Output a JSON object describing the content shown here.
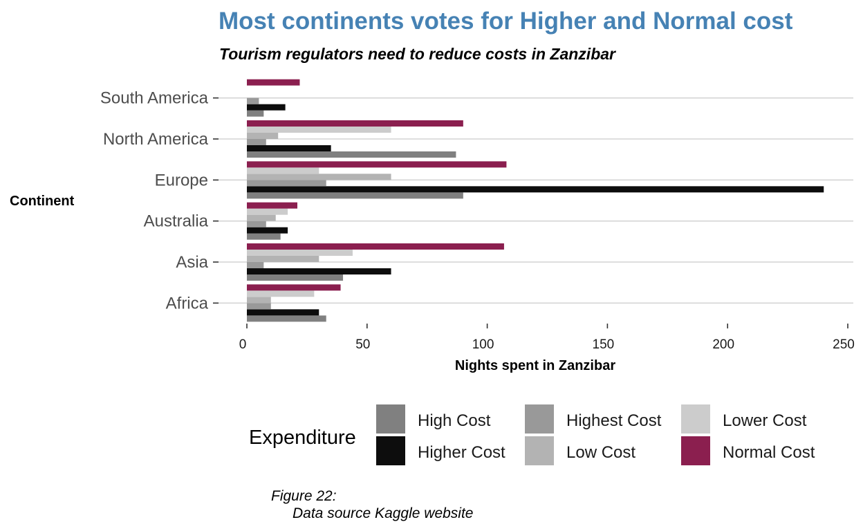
{
  "chart_data": {
    "type": "bar",
    "orientation": "horizontal",
    "title": "Most continents votes for Higher and Normal cost",
    "subtitle": "Tourism regulators need to  reduce costs in Zanzibar",
    "xlabel": "Nights spent in Zanzibar",
    "ylabel": "Continent",
    "xlim": [
      0,
      250
    ],
    "xticks": [
      "0",
      "50",
      "100",
      "150",
      "200",
      "250"
    ],
    "grid": "horizontal",
    "categories": [
      "Africa",
      "Asia",
      "Australia",
      "Europe",
      "North America",
      "South America"
    ],
    "series": [
      {
        "name": "High Cost",
        "color": "#808080",
        "values": [
          33,
          40,
          14,
          90,
          87,
          7
        ]
      },
      {
        "name": "Higher Cost",
        "color": "#0d0d0d",
        "values": [
          30,
          60,
          17,
          240,
          35,
          16
        ]
      },
      {
        "name": "Highest Cost",
        "color": "#999999",
        "values": [
          10,
          7,
          8,
          33,
          8,
          5
        ]
      },
      {
        "name": "Low Cost",
        "color": "#b3b3b3",
        "values": [
          10,
          30,
          12,
          60,
          13,
          0
        ]
      },
      {
        "name": "Lower Cost",
        "color": "#cccccc",
        "values": [
          28,
          44,
          17,
          30,
          60,
          0
        ]
      },
      {
        "name": "Normal Cost",
        "color": "#8b1f4f",
        "values": [
          39,
          107,
          21,
          108,
          90,
          22
        ]
      }
    ],
    "legend": {
      "title": "Expenditure",
      "position": "bottom"
    }
  },
  "caption": {
    "line1": "Figure 22:",
    "line2": "Data source Kaggle website"
  }
}
